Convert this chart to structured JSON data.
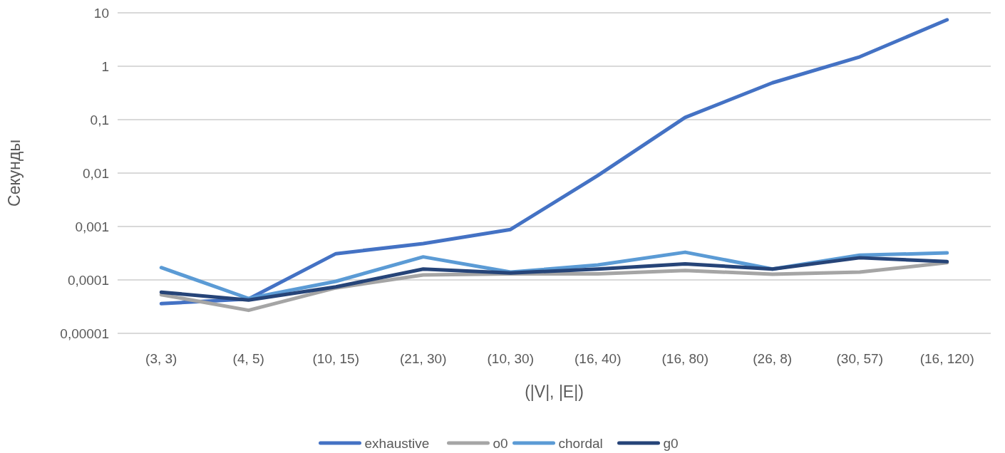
{
  "chart_data": {
    "type": "line",
    "xlabel": "(|V|, |E|)",
    "ylabel": "Секунды",
    "log": true,
    "grid": "y",
    "legend": "bottom",
    "line_style": "solid",
    "marker": "none",
    "categories": [
      "(3, 3)",
      "(4, 5)",
      "(10, 15)",
      "(21, 30)",
      "(10, 30)",
      "(16, 40)",
      "(16, 80)",
      "(26, 8)",
      "(30, 57)",
      "(16, 120)"
    ],
    "ylim": [
      1e-05,
      10
    ],
    "yticks": [
      {
        "value": 1e-05,
        "label": "0,00001"
      },
      {
        "value": 0.0001,
        "label": "0,0001"
      },
      {
        "value": 0.001,
        "label": "0,001"
      },
      {
        "value": 0.01,
        "label": "0,01"
      },
      {
        "value": 0.1,
        "label": "0,1"
      },
      1,
      10
    ],
    "series": [
      {
        "name": "exhaustive",
        "color": "#4472c4",
        "values": [
          3.6e-05,
          4.4e-05,
          0.00031,
          0.00048,
          0.00088,
          0.009,
          0.11,
          0.49,
          1.5,
          7.4
        ]
      },
      {
        "name": "o0",
        "color": "#a5a5a5",
        "values": [
          5.3e-05,
          2.7e-05,
          7.1e-05,
          0.000124,
          0.00013,
          0.00013,
          0.00015,
          0.000128,
          0.00014,
          0.00021
        ]
      },
      {
        "name": "chordal",
        "color": "#5b9bd5",
        "values": [
          0.00017,
          4.5e-05,
          9.4e-05,
          0.00027,
          0.00014,
          0.00019,
          0.00033,
          0.00016,
          0.00029,
          0.00032
        ]
      },
      {
        "name": "g0",
        "color": "#264478",
        "values": [
          5.9e-05,
          4.2e-05,
          7.4e-05,
          0.00016,
          0.000135,
          0.00016,
          0.0002,
          0.00016,
          0.00026,
          0.00022
        ]
      }
    ]
  }
}
